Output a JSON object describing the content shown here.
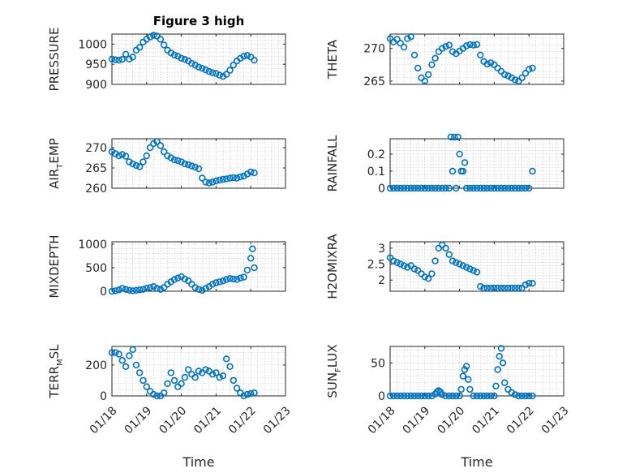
{
  "figure_title": "Figure 3 high",
  "xlabel": "Time",
  "x_tick_labels": [
    "01/18",
    "01/19",
    "01/20",
    "01/21",
    "01/22",
    "01/23"
  ],
  "colors": {
    "marker": "#0072BD",
    "axes": "#262626",
    "grid": "#c8c8c8"
  },
  "chart_data": [
    {
      "type": "scatter",
      "id": "pressure",
      "title": "Figure 3 high",
      "ylabel_main": "PRESSURE",
      "ylabel_sub": "",
      "ylabel_tail": "",
      "xlabel": "",
      "xlim": [
        0,
        5
      ],
      "ylim": [
        900,
        1025
      ],
      "y_ticks": [
        900,
        950,
        1000
      ],
      "y_tick_labels": [
        "900",
        "950",
        "1000"
      ],
      "x": [
        0,
        0.1,
        0.2,
        0.3,
        0.4,
        0.5,
        0.6,
        0.7,
        0.8,
        0.9,
        1.0,
        1.1,
        1.2,
        1.3,
        1.4,
        1.5,
        1.6,
        1.7,
        1.8,
        1.9,
        2.0,
        2.1,
        2.2,
        2.3,
        2.4,
        2.5,
        2.6,
        2.7,
        2.8,
        2.9,
        3.0,
        3.1,
        3.2,
        3.3,
        3.4,
        3.5,
        3.6,
        3.7,
        3.8,
        3.9,
        4.0,
        4.1
      ],
      "y": [
        963,
        961,
        960,
        962,
        975,
        963,
        968,
        985,
        992,
        1005,
        1012,
        1018,
        1022,
        1020,
        1012,
        998,
        985,
        978,
        973,
        970,
        965,
        962,
        958,
        952,
        948,
        943,
        940,
        936,
        932,
        929,
        927,
        923,
        920,
        925,
        935,
        948,
        958,
        965,
        970,
        972,
        968,
        960
      ]
    },
    {
      "type": "scatter",
      "id": "theta",
      "ylabel_main": "THETA",
      "ylabel_sub": "",
      "ylabel_tail": "",
      "xlabel": "",
      "xlim": [
        0,
        5
      ],
      "ylim": [
        264.5,
        272.2
      ],
      "y_ticks": [
        265,
        270
      ],
      "y_tick_labels": [
        "265",
        "270"
      ],
      "x": [
        0,
        0.1,
        0.2,
        0.3,
        0.4,
        0.5,
        0.6,
        0.7,
        0.8,
        0.9,
        1.0,
        1.1,
        1.2,
        1.3,
        1.4,
        1.5,
        1.6,
        1.7,
        1.8,
        1.9,
        2.0,
        2.1,
        2.2,
        2.3,
        2.4,
        2.5,
        2.6,
        2.7,
        2.8,
        2.9,
        3.0,
        3.1,
        3.2,
        3.3,
        3.4,
        3.5,
        3.6,
        3.7,
        3.8,
        3.9,
        4.0,
        4.1
      ],
      "y": [
        271.5,
        271.0,
        271.4,
        270.8,
        270.2,
        271.5,
        271.8,
        269.0,
        267.0,
        265.5,
        265.0,
        266.0,
        267.5,
        268.5,
        269.5,
        270.0,
        270.3,
        270.5,
        269.5,
        269.2,
        269.6,
        270.0,
        270.4,
        270.6,
        270.5,
        270.6,
        269.0,
        268.0,
        267.6,
        267.8,
        267.5,
        267.0,
        266.5,
        266.0,
        265.8,
        265.5,
        265.2,
        265.0,
        265.5,
        266.2,
        266.8,
        267.0
      ]
    },
    {
      "type": "scatter",
      "id": "air-temp",
      "ylabel_main": "AIR",
      "ylabel_sub": "T",
      "ylabel_tail": "EMP",
      "xlabel": "",
      "xlim": [
        0,
        5
      ],
      "ylim": [
        260,
        272.2
      ],
      "y_ticks": [
        260,
        265,
        270
      ],
      "y_tick_labels": [
        "260",
        "265",
        "270"
      ],
      "x": [
        0,
        0.1,
        0.2,
        0.3,
        0.4,
        0.5,
        0.6,
        0.7,
        0.8,
        0.9,
        1.0,
        1.1,
        1.2,
        1.3,
        1.4,
        1.5,
        1.6,
        1.7,
        1.8,
        1.9,
        2.0,
        2.1,
        2.2,
        2.3,
        2.4,
        2.5,
        2.6,
        2.7,
        2.8,
        2.9,
        3.0,
        3.1,
        3.2,
        3.3,
        3.4,
        3.5,
        3.6,
        3.7,
        3.8,
        3.9,
        4.0,
        4.1
      ],
      "y": [
        269.0,
        268.5,
        268.0,
        268.3,
        267.9,
        266.5,
        266.0,
        265.6,
        265.3,
        266.5,
        268.0,
        270.0,
        271.0,
        271.5,
        270.5,
        269.0,
        268.0,
        267.5,
        267.0,
        266.8,
        266.5,
        266.0,
        265.8,
        265.5,
        265.2,
        264.8,
        262.5,
        261.5,
        261.3,
        261.5,
        261.8,
        262.0,
        262.2,
        262.3,
        262.5,
        262.6,
        262.5,
        262.8,
        263.0,
        263.5,
        264.0,
        263.8
      ]
    },
    {
      "type": "scatter",
      "id": "rainfall",
      "ylabel_main": "RAINFALL",
      "ylabel_sub": "",
      "ylabel_tail": "",
      "xlabel": "",
      "xlim": [
        0,
        5
      ],
      "ylim": [
        0,
        0.29
      ],
      "y_ticks": [
        0,
        0.1,
        0.2
      ],
      "y_tick_labels": [
        "0",
        "0.1",
        "0.2"
      ],
      "x": [
        0,
        0.1,
        0.2,
        0.3,
        0.4,
        0.5,
        0.6,
        0.7,
        0.8,
        0.9,
        1.0,
        1.1,
        1.2,
        1.3,
        1.4,
        1.5,
        1.6,
        1.7,
        1.75,
        1.8,
        1.85,
        1.9,
        1.95,
        2.0,
        2.05,
        2.1,
        2.15,
        2.2,
        2.3,
        2.4,
        2.5,
        2.6,
        2.7,
        2.8,
        2.9,
        3.0,
        3.1,
        3.2,
        3.3,
        3.4,
        3.5,
        3.6,
        3.7,
        3.8,
        3.9,
        4.0,
        4.1
      ],
      "y": [
        0,
        0,
        0,
        0,
        0,
        0,
        0,
        0,
        0,
        0,
        0,
        0,
        0,
        0,
        0,
        0,
        0,
        0,
        0.3,
        0.1,
        0.3,
        0,
        0.3,
        0.2,
        0.1,
        0.1,
        0.15,
        0,
        0,
        0,
        0,
        0,
        0,
        0,
        0,
        0,
        0,
        0,
        0,
        0,
        0,
        0,
        0,
        0,
        0,
        0,
        0.1
      ]
    },
    {
      "type": "scatter",
      "id": "mixdepth",
      "ylabel_main": "MIXDEPTH",
      "ylabel_sub": "",
      "ylabel_tail": "",
      "xlabel": "",
      "xlim": [
        0,
        5
      ],
      "ylim": [
        0,
        1050
      ],
      "y_ticks": [
        0,
        500,
        1000
      ],
      "y_tick_labels": [
        "0",
        "500",
        "1000"
      ],
      "x": [
        0,
        0.1,
        0.2,
        0.3,
        0.4,
        0.5,
        0.6,
        0.7,
        0.8,
        0.9,
        1.0,
        1.1,
        1.2,
        1.3,
        1.4,
        1.5,
        1.6,
        1.7,
        1.8,
        1.9,
        2.0,
        2.1,
        2.2,
        2.3,
        2.4,
        2.5,
        2.6,
        2.7,
        2.8,
        2.9,
        3.0,
        3.1,
        3.2,
        3.3,
        3.4,
        3.5,
        3.6,
        3.7,
        3.8,
        3.9,
        4.0,
        4.05,
        4.1
      ],
      "y": [
        0,
        10,
        30,
        60,
        40,
        20,
        10,
        20,
        30,
        40,
        60,
        80,
        100,
        60,
        40,
        80,
        150,
        200,
        250,
        280,
        310,
        260,
        220,
        150,
        80,
        40,
        20,
        60,
        100,
        150,
        180,
        200,
        220,
        250,
        270,
        260,
        250,
        280,
        300,
        450,
        700,
        900,
        500
      ]
    },
    {
      "type": "scatter",
      "id": "h2omixra",
      "ylabel_main": "H2OMIXRA",
      "ylabel_sub": "",
      "ylabel_tail": "",
      "xlabel": "",
      "xlim": [
        0,
        5
      ],
      "ylim": [
        1.65,
        3.2
      ],
      "y_ticks": [
        2,
        2.5,
        3
      ],
      "y_tick_labels": [
        "2",
        "2.5",
        "3"
      ],
      "x": [
        0,
        0.1,
        0.2,
        0.3,
        0.4,
        0.5,
        0.6,
        0.7,
        0.8,
        0.9,
        1.0,
        1.1,
        1.2,
        1.3,
        1.4,
        1.5,
        1.6,
        1.7,
        1.8,
        1.9,
        2.0,
        2.1,
        2.2,
        2.3,
        2.4,
        2.5,
        2.6,
        2.7,
        2.8,
        2.9,
        3.0,
        3.1,
        3.2,
        3.3,
        3.4,
        3.5,
        3.6,
        3.7,
        3.8,
        3.9,
        4.0,
        4.1
      ],
      "y": [
        2.7,
        2.6,
        2.55,
        2.5,
        2.45,
        2.4,
        2.45,
        2.35,
        2.3,
        2.2,
        2.1,
        2.05,
        2.2,
        2.6,
        3.0,
        3.1,
        3.0,
        2.8,
        2.6,
        2.55,
        2.5,
        2.45,
        2.4,
        2.35,
        2.3,
        2.25,
        1.8,
        1.75,
        1.75,
        1.75,
        1.75,
        1.75,
        1.75,
        1.75,
        1.75,
        1.75,
        1.75,
        1.75,
        1.75,
        1.85,
        1.9,
        1.9
      ]
    },
    {
      "type": "scatter",
      "id": "terr-msl",
      "ylabel_main": "TERR",
      "ylabel_sub": "M",
      "ylabel_tail": "SL",
      "xlabel": "Time",
      "xlim": [
        0,
        5
      ],
      "ylim": [
        0,
        320
      ],
      "y_ticks": [
        0,
        200
      ],
      "y_tick_labels": [
        "0",
        "200"
      ],
      "x": [
        0,
        0.1,
        0.2,
        0.3,
        0.4,
        0.5,
        0.6,
        0.7,
        0.8,
        0.9,
        1.0,
        1.1,
        1.2,
        1.3,
        1.4,
        1.5,
        1.6,
        1.7,
        1.8,
        1.9,
        2.0,
        2.1,
        2.2,
        2.3,
        2.4,
        2.5,
        2.6,
        2.7,
        2.8,
        2.9,
        3.0,
        3.1,
        3.2,
        3.3,
        3.4,
        3.5,
        3.6,
        3.7,
        3.8,
        3.9,
        4.0,
        4.1
      ],
      "y": [
        280,
        280,
        270,
        230,
        190,
        260,
        300,
        200,
        150,
        100,
        60,
        30,
        10,
        0,
        0,
        20,
        80,
        150,
        100,
        60,
        80,
        120,
        170,
        140,
        120,
        160,
        150,
        170,
        160,
        140,
        150,
        120,
        130,
        240,
        190,
        100,
        50,
        20,
        0,
        10,
        15,
        20
      ]
    },
    {
      "type": "scatter",
      "id": "sun-flux",
      "ylabel_main": "SUN",
      "ylabel_sub": "F",
      "ylabel_tail": "LUX",
      "xlabel": "Time",
      "xlim": [
        0,
        5
      ],
      "ylim": [
        0,
        75
      ],
      "y_ticks": [
        0,
        50
      ],
      "y_tick_labels": [
        "0",
        "50"
      ],
      "x": [
        0,
        0.1,
        0.2,
        0.3,
        0.4,
        0.5,
        0.6,
        0.7,
        0.8,
        0.9,
        1.0,
        1.1,
        1.2,
        1.3,
        1.35,
        1.4,
        1.45,
        1.5,
        1.6,
        1.7,
        1.8,
        1.9,
        2.0,
        2.05,
        2.1,
        2.15,
        2.2,
        2.25,
        2.3,
        2.4,
        2.5,
        2.6,
        2.7,
        2.8,
        2.9,
        3.0,
        3.05,
        3.1,
        3.15,
        3.2,
        3.25,
        3.3,
        3.4,
        3.5,
        3.6,
        3.7,
        3.8,
        3.9,
        4.0,
        4.1
      ],
      "y": [
        0,
        0,
        0,
        0,
        0,
        0,
        0,
        0,
        0,
        0,
        0,
        0,
        0,
        3,
        6,
        8,
        6,
        2,
        0,
        0,
        0,
        0,
        0,
        10,
        30,
        40,
        45,
        25,
        10,
        0,
        0,
        0,
        0,
        0,
        0,
        0,
        15,
        40,
        60,
        72,
        50,
        20,
        10,
        5,
        2,
        0,
        0,
        0,
        0,
        0
      ]
    }
  ]
}
